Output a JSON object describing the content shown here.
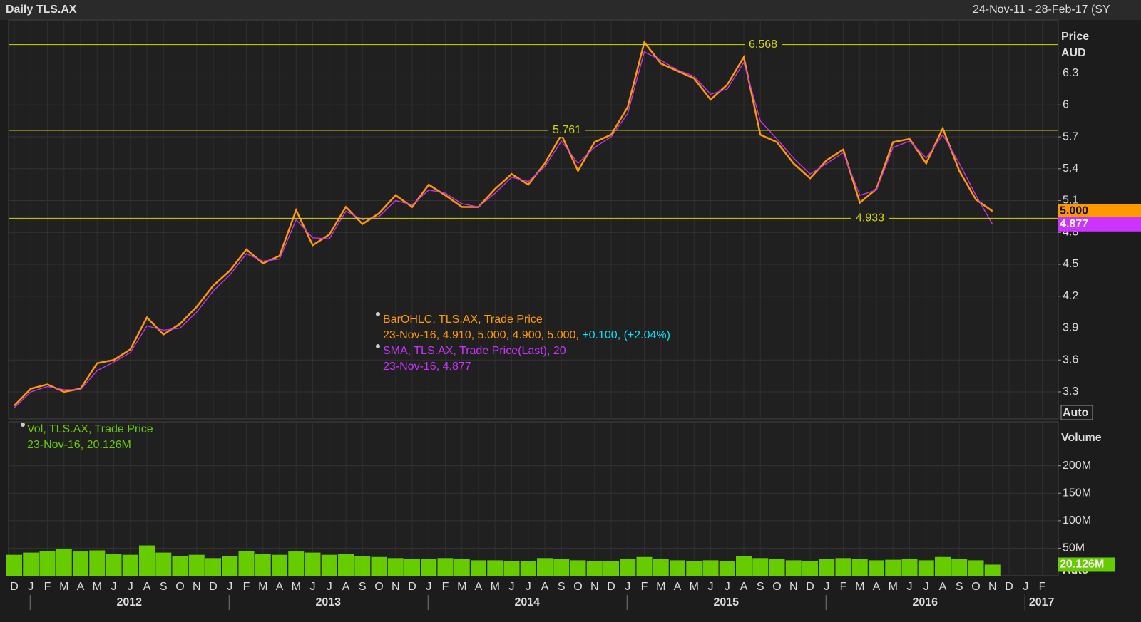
{
  "header": {
    "title": "Daily TLS.AX",
    "range": "24-Nov-11 - 28-Feb-17 (SY"
  },
  "x_axis": {
    "months": [
      "D",
      "J",
      "F",
      "M",
      "A",
      "M",
      "J",
      "J",
      "A",
      "S",
      "O",
      "N",
      "D",
      "J",
      "F",
      "M",
      "A",
      "M",
      "J",
      "J",
      "A",
      "S",
      "O",
      "N",
      "D",
      "J",
      "F",
      "M",
      "A",
      "M",
      "J",
      "J",
      "A",
      "S",
      "O",
      "N",
      "D",
      "J",
      "F",
      "M",
      "A",
      "M",
      "J",
      "J",
      "A",
      "S",
      "O",
      "N",
      "D",
      "J",
      "F",
      "M",
      "A",
      "M",
      "J",
      "J",
      "A",
      "S",
      "O",
      "N",
      "D",
      "J",
      "F"
    ],
    "years": [
      2012,
      2013,
      2014,
      2015,
      2016,
      2017
    ]
  },
  "chart_data": [
    {
      "type": "line",
      "y_label": [
        "Price",
        "AUD"
      ],
      "button": "Auto",
      "x": [
        "2011-12",
        "2012-01",
        "2012-02",
        "2012-03",
        "2012-04",
        "2012-05",
        "2012-06",
        "2012-07",
        "2012-08",
        "2012-09",
        "2012-10",
        "2012-11",
        "2012-12",
        "2013-01",
        "2013-02",
        "2013-03",
        "2013-04",
        "2013-05",
        "2013-06",
        "2013-07",
        "2013-08",
        "2013-09",
        "2013-10",
        "2013-11",
        "2013-12",
        "2014-01",
        "2014-02",
        "2014-03",
        "2014-04",
        "2014-05",
        "2014-06",
        "2014-07",
        "2014-08",
        "2014-09",
        "2014-10",
        "2014-11",
        "2014-12",
        "2015-01",
        "2015-02",
        "2015-03",
        "2015-04",
        "2015-05",
        "2015-06",
        "2015-07",
        "2015-08",
        "2015-09",
        "2015-10",
        "2015-11",
        "2015-12",
        "2016-01",
        "2016-02",
        "2016-03",
        "2016-04",
        "2016-05",
        "2016-06",
        "2016-07",
        "2016-08",
        "2016-09",
        "2016-10",
        "2016-11"
      ],
      "series": [
        {
          "name": "BarOHLC, TLS.AX, Trade Price",
          "color": "#ff9900",
          "details": [
            "23-Nov-16, 4.910, 5.000, 4.900, 5.000, ",
            "+0.100, (+2.04%)"
          ],
          "values": [
            3.17,
            3.33,
            3.37,
            3.3,
            3.33,
            3.57,
            3.6,
            3.7,
            4.0,
            3.84,
            3.94,
            4.1,
            4.3,
            4.44,
            4.64,
            4.51,
            4.58,
            5.01,
            4.68,
            4.78,
            5.04,
            4.88,
            4.98,
            5.15,
            5.04,
            5.25,
            5.15,
            5.04,
            5.04,
            5.21,
            5.35,
            5.25,
            5.45,
            5.72,
            5.38,
            5.65,
            5.72,
            5.98,
            6.59,
            6.39,
            6.32,
            6.25,
            6.05,
            6.19,
            6.45,
            5.72,
            5.65,
            5.45,
            5.31,
            5.48,
            5.58,
            5.08,
            5.21,
            5.65,
            5.68,
            5.45,
            5.78,
            5.38,
            5.11,
            5.0
          ]
        },
        {
          "name": "SMA, TLS.AX, Trade Price(Last),  20",
          "color": "#cc33ff",
          "details": [
            "23-Nov-16, 4.877"
          ],
          "values": [
            3.15,
            3.3,
            3.35,
            3.32,
            3.32,
            3.5,
            3.58,
            3.67,
            3.92,
            3.88,
            3.9,
            4.05,
            4.25,
            4.4,
            4.6,
            4.53,
            4.55,
            4.92,
            4.75,
            4.74,
            5.0,
            4.92,
            4.95,
            5.1,
            5.06,
            5.2,
            5.17,
            5.07,
            5.04,
            5.17,
            5.32,
            5.28,
            5.42,
            5.66,
            5.45,
            5.6,
            5.7,
            5.92,
            6.5,
            6.42,
            6.33,
            6.27,
            6.1,
            6.15,
            6.4,
            5.85,
            5.68,
            5.5,
            5.35,
            5.45,
            5.55,
            5.15,
            5.2,
            5.6,
            5.66,
            5.5,
            5.72,
            5.45,
            5.15,
            4.877
          ]
        }
      ],
      "highlight_color": "#00e5ff",
      "reference_lines": [
        6.568,
        5.761,
        4.933
      ],
      "reference_color": "#d4d400",
      "last_values": [
        {
          "value": 5,
          "label": "5.000",
          "color": "#ff9900"
        },
        {
          "value": 4.877,
          "label": "4.877",
          "color": "#cc33ff"
        }
      ],
      "ylim": [
        3.045,
        6.8
      ],
      "yticks": [
        3.3,
        3.6,
        3.9,
        4.2,
        4.5,
        4.8,
        5.1,
        5.4,
        5.7,
        6,
        6.3
      ],
      "grid": true
    },
    {
      "type": "bar",
      "y_label": "Volume",
      "button": "Auto",
      "x": [
        "2011-12",
        "2012-01",
        "2012-02",
        "2012-03",
        "2012-04",
        "2012-05",
        "2012-06",
        "2012-07",
        "2012-08",
        "2012-09",
        "2012-10",
        "2012-11",
        "2012-12",
        "2013-01",
        "2013-02",
        "2013-03",
        "2013-04",
        "2013-05",
        "2013-06",
        "2013-07",
        "2013-08",
        "2013-09",
        "2013-10",
        "2013-11",
        "2013-12",
        "2014-01",
        "2014-02",
        "2014-03",
        "2014-04",
        "2014-05",
        "2014-06",
        "2014-07",
        "2014-08",
        "2014-09",
        "2014-10",
        "2014-11",
        "2014-12",
        "2015-01",
        "2015-02",
        "2015-03",
        "2015-04",
        "2015-05",
        "2015-06",
        "2015-07",
        "2015-08",
        "2015-09",
        "2015-10",
        "2015-11",
        "2015-12",
        "2016-01",
        "2016-02",
        "2016-03",
        "2016-04",
        "2016-05",
        "2016-06",
        "2016-07",
        "2016-08",
        "2016-09",
        "2016-10",
        "2016-11"
      ],
      "series": [
        {
          "name": "Vol, TLS.AX, Trade Price",
          "color": "#66cc00",
          "details": [
            "23-Nov-16, 20.126M"
          ],
          "values": [
            38000000,
            42000000,
            45000000,
            48000000,
            44000000,
            46000000,
            40000000,
            38000000,
            55000000,
            42000000,
            36000000,
            38000000,
            32000000,
            36000000,
            45000000,
            40000000,
            38000000,
            44000000,
            42000000,
            38000000,
            40000000,
            36000000,
            34000000,
            32000000,
            30000000,
            30000000,
            32000000,
            30000000,
            28000000,
            28000000,
            27000000,
            26000000,
            32000000,
            30000000,
            28000000,
            27000000,
            26000000,
            30000000,
            34000000,
            30000000,
            28000000,
            27000000,
            28000000,
            26000000,
            36000000,
            32000000,
            30000000,
            28000000,
            26000000,
            30000000,
            32000000,
            30000000,
            28000000,
            29000000,
            30000000,
            28000000,
            34000000,
            30000000,
            28000000,
            20126000
          ]
        }
      ],
      "last_value": {
        "value": 20126000,
        "label": "20.126M"
      },
      "ylim": [
        0,
        280000000
      ],
      "yticks": [
        {
          "value": 50000000,
          "label": "50M"
        },
        {
          "value": 100000000,
          "label": "100M"
        },
        {
          "value": 150000000,
          "label": "150M"
        },
        {
          "value": 200000000,
          "label": "200M"
        }
      ],
      "grid": true
    }
  ]
}
